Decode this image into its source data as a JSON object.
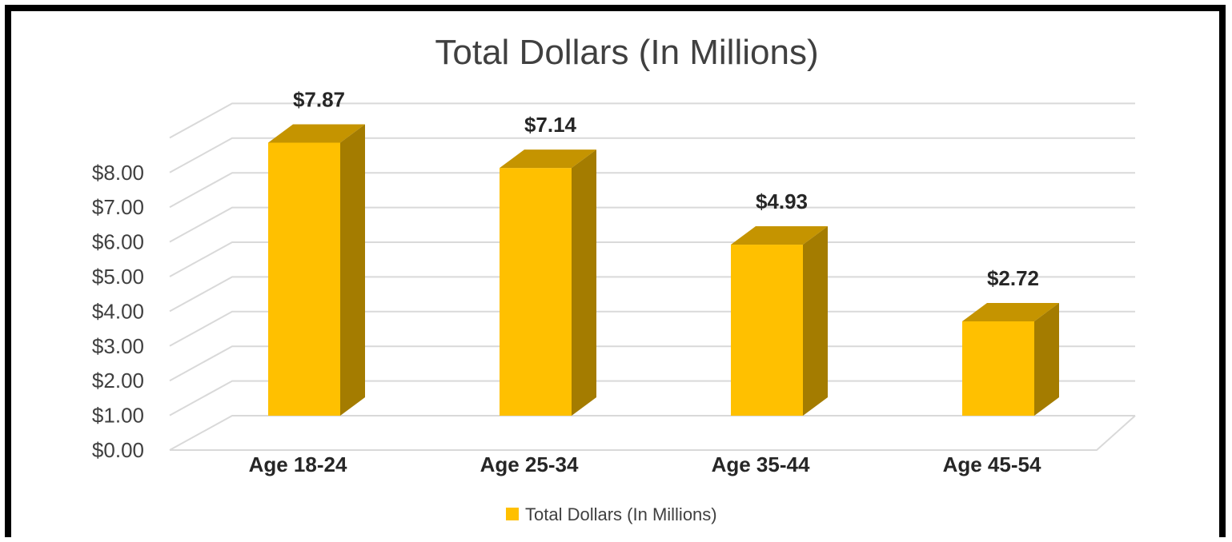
{
  "chart_data": {
    "type": "bar",
    "style": "3d-column",
    "title": "Total Dollars (In Millions)",
    "xlabel": "",
    "ylabel": "",
    "categories": [
      "Age 18-24",
      "Age 25-34",
      "Age 35-44",
      "Age 45-54"
    ],
    "series": [
      {
        "name": "Total Dollars (In Millions)",
        "values": [
          7.87,
          7.14,
          4.93,
          2.72
        ],
        "value_labels": [
          "$7.87",
          "$7.14",
          "$4.93",
          "$2.72"
        ]
      }
    ],
    "ylim": [
      0,
      9
    ],
    "y_ticks": [
      "$0.00",
      "$1.00",
      "$2.00",
      "$3.00",
      "$4.00",
      "$5.00",
      "$6.00",
      "$7.00",
      "$8.00"
    ],
    "grid": true,
    "legend_position": "bottom",
    "colors": {
      "bar_front": "#FFC000",
      "bar_top": "#C59400",
      "bar_side": "#A47C00",
      "gridline": "#D9D9D9",
      "frame": "#000000"
    }
  }
}
